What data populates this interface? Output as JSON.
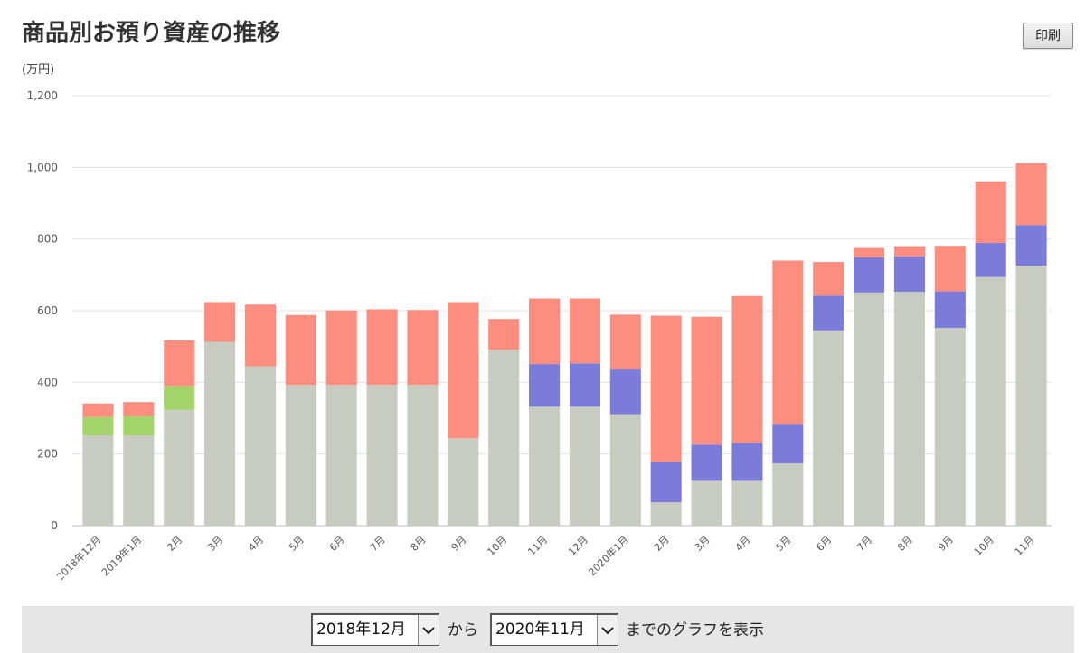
{
  "header": {
    "title": "商品別お預り資産の推移",
    "print_label": "印刷"
  },
  "chart_data": {
    "type": "bar",
    "stacked": true,
    "ylabel": "(万円)",
    "ylim": [
      0,
      1200
    ],
    "yticks": [
      0,
      200,
      400,
      600,
      800,
      1000,
      1200
    ],
    "ytick_labels": [
      "0",
      "200",
      "400",
      "600",
      "800",
      "1,000",
      "1,200"
    ],
    "grid": true,
    "legend": "none",
    "categories": [
      "2018年12月",
      "2019年1月",
      "2月",
      "3月",
      "4月",
      "5月",
      "6月",
      "7月",
      "8月",
      "9月",
      "10月",
      "11月",
      "12月",
      "2020年1月",
      "2月",
      "3月",
      "4月",
      "5月",
      "6月",
      "7月",
      "8月",
      "9月",
      "10月",
      "11月"
    ],
    "series": [
      {
        "color": "#c8ccc0",
        "values": [
          252,
          252,
          323,
          513,
          445,
          393,
          393,
          393,
          393,
          244,
          491,
          332,
          332,
          311,
          65,
          125,
          125,
          174,
          545,
          651,
          653,
          552,
          694,
          726
        ]
      },
      {
        "color": "#a3d46a",
        "values": [
          51,
          53,
          67,
          0,
          0,
          0,
          0,
          0,
          0,
          0,
          0,
          0,
          0,
          0,
          0,
          0,
          0,
          0,
          0,
          0,
          0,
          0,
          0,
          0
        ]
      },
      {
        "color": "#7b7bd9",
        "values": [
          0,
          0,
          0,
          0,
          0,
          0,
          0,
          0,
          0,
          0,
          0,
          119,
          121,
          125,
          112,
          101,
          106,
          108,
          97,
          98,
          99,
          102,
          95,
          113
        ]
      },
      {
        "color": "#fd8d7f",
        "values": [
          38,
          40,
          127,
          111,
          172,
          195,
          208,
          211,
          209,
          380,
          86,
          183,
          181,
          153,
          409,
          357,
          410,
          458,
          94,
          26,
          28,
          127,
          172,
          173
        ]
      }
    ]
  },
  "controls": {
    "from_value": "2018年12月",
    "between_text": "から",
    "to_value": "2020年11月",
    "suffix_text": "までのグラフを表示"
  }
}
